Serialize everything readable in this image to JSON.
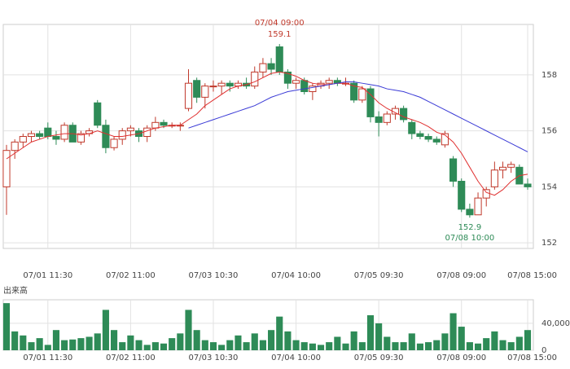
{
  "chart_data": {
    "type": "candlestick",
    "categories": [
      null,
      null,
      null,
      null,
      null,
      "07/01 11:30",
      null,
      null,
      null,
      null,
      null,
      null,
      null,
      null,
      null,
      "07/02 11:00",
      null,
      null,
      null,
      null,
      null,
      null,
      null,
      null,
      null,
      "07/03 10:30",
      null,
      null,
      null,
      null,
      null,
      null,
      null,
      null,
      null,
      "07/04 10:00",
      null,
      null,
      null,
      null,
      null,
      null,
      null,
      null,
      null,
      "07/05 09:30",
      null,
      null,
      null,
      null,
      null,
      null,
      null,
      null,
      null,
      "07/08 09:00",
      null,
      null,
      null,
      null,
      null,
      null,
      null,
      "07/08 15:00"
    ],
    "open": [
      154.0,
      155.3,
      155.6,
      155.8,
      155.9,
      156.1,
      155.8,
      155.7,
      156.2,
      155.6,
      155.9,
      157.0,
      156.2,
      155.4,
      155.7,
      156.0,
      156.0,
      155.8,
      156.1,
      156.3,
      156.2,
      156.2,
      156.8,
      157.8,
      157.2,
      157.6,
      157.6,
      157.7,
      157.6,
      157.7,
      157.6,
      158.1,
      158.4,
      159.0,
      158.1,
      157.7,
      157.8,
      157.4,
      157.6,
      157.7,
      157.8,
      157.7,
      157.7,
      157.1,
      157.5,
      156.5,
      156.3,
      156.6,
      156.8,
      156.3,
      155.9,
      155.8,
      155.7,
      155.5,
      155.0,
      154.2,
      153.2,
      153.0,
      153.6,
      154.0,
      154.6,
      154.7,
      154.7,
      154.1
    ],
    "high": [
      155.5,
      155.7,
      155.9,
      156.0,
      156.0,
      156.3,
      156.0,
      156.3,
      156.3,
      156.0,
      156.1,
      157.1,
      156.4,
      155.8,
      156.1,
      156.2,
      156.1,
      156.2,
      156.5,
      156.4,
      156.3,
      156.3,
      158.2,
      157.9,
      157.7,
      157.8,
      157.8,
      157.8,
      157.8,
      157.9,
      158.3,
      158.6,
      158.6,
      159.1,
      158.2,
      157.9,
      157.9,
      157.7,
      157.8,
      157.9,
      157.9,
      157.9,
      157.8,
      157.6,
      157.6,
      156.7,
      156.7,
      156.9,
      156.9,
      156.4,
      156.0,
      155.9,
      155.8,
      156.0,
      155.1,
      154.3,
      153.4,
      153.8,
      154.0,
      154.9,
      154.9,
      154.9,
      154.8,
      154.3
    ],
    "low": [
      153.0,
      155.0,
      155.4,
      155.6,
      155.7,
      155.7,
      155.5,
      155.6,
      155.6,
      155.5,
      155.8,
      156.1,
      155.2,
      155.3,
      155.5,
      155.8,
      155.6,
      155.6,
      156.0,
      156.1,
      156.1,
      156.0,
      156.7,
      157.0,
      156.8,
      157.4,
      157.3,
      157.4,
      157.5,
      157.5,
      157.5,
      157.9,
      158.0,
      158.0,
      157.5,
      157.5,
      157.3,
      157.1,
      157.5,
      157.5,
      157.6,
      157.6,
      157.0,
      157.0,
      156.3,
      155.8,
      156.2,
      156.4,
      156.3,
      155.7,
      155.7,
      155.6,
      155.5,
      155.4,
      154.0,
      153.1,
      152.9,
      153.0,
      153.3,
      153.9,
      154.3,
      154.5,
      154.1,
      153.9
    ],
    "close": [
      155.3,
      155.6,
      155.8,
      155.9,
      155.8,
      155.8,
      155.7,
      156.2,
      155.6,
      155.9,
      156.0,
      156.2,
      155.4,
      155.7,
      156.0,
      156.1,
      155.8,
      156.1,
      156.3,
      156.2,
      156.2,
      156.2,
      157.7,
      157.2,
      157.6,
      157.6,
      157.7,
      157.6,
      157.7,
      157.6,
      158.1,
      158.4,
      158.2,
      158.1,
      157.7,
      157.8,
      157.4,
      157.6,
      157.7,
      157.8,
      157.7,
      157.7,
      157.1,
      157.5,
      156.5,
      156.3,
      156.6,
      156.8,
      156.4,
      155.9,
      155.8,
      155.7,
      155.6,
      155.9,
      154.2,
      153.2,
      153.0,
      153.6,
      153.9,
      154.6,
      154.7,
      154.8,
      154.1,
      154.0
    ],
    "up_color": "#c0392b",
    "down_color": "#2e8b57",
    "ma": [
      {
        "color": "#e03030",
        "values": [
          155.0,
          155.2,
          155.4,
          155.6,
          155.7,
          155.8,
          155.85,
          155.9,
          155.9,
          155.85,
          155.9,
          156.0,
          155.9,
          155.8,
          155.8,
          155.85,
          155.9,
          156.0,
          156.1,
          156.15,
          156.2,
          156.2,
          156.4,
          156.6,
          156.9,
          157.1,
          157.3,
          157.5,
          157.6,
          157.65,
          157.75,
          157.9,
          158.05,
          158.1,
          158.05,
          157.95,
          157.8,
          157.7,
          157.65,
          157.65,
          157.7,
          157.7,
          157.6,
          157.55,
          157.3,
          157.0,
          156.8,
          156.65,
          156.5,
          156.4,
          156.3,
          156.15,
          155.95,
          155.85,
          155.6,
          155.2,
          154.7,
          154.2,
          153.8,
          153.7,
          153.9,
          154.2,
          154.4,
          154.45
        ]
      },
      {
        "color": "#3b3bd6",
        "values": [
          null,
          null,
          null,
          null,
          null,
          null,
          null,
          null,
          null,
          null,
          null,
          null,
          null,
          null,
          null,
          null,
          null,
          null,
          null,
          null,
          null,
          null,
          156.1,
          156.2,
          156.3,
          156.4,
          156.5,
          156.6,
          156.7,
          156.8,
          156.9,
          157.05,
          157.2,
          157.3,
          157.4,
          157.45,
          157.5,
          157.55,
          157.6,
          157.65,
          157.7,
          157.75,
          157.75,
          157.7,
          157.65,
          157.6,
          157.5,
          157.45,
          157.4,
          157.3,
          157.2,
          157.05,
          156.9,
          156.75,
          156.6,
          156.45,
          156.3,
          156.15,
          156.0,
          155.85,
          155.7,
          155.55,
          155.4,
          155.25
        ]
      }
    ],
    "ylim": [
      151.8,
      159.8
    ],
    "yticks": [
      152,
      154,
      156,
      158
    ],
    "high_note": {
      "time": "07/04 09:00",
      "value": 159.1
    },
    "low_note": {
      "value": 152.9,
      "time": "07/08 10:00"
    },
    "volume": {
      "title": "出来高",
      "color": "#2e8b57",
      "values": [
        70000,
        28000,
        22000,
        12000,
        18000,
        8000,
        30000,
        15000,
        16000,
        18000,
        20000,
        25000,
        60000,
        30000,
        12000,
        22000,
        15000,
        8000,
        12000,
        10000,
        18000,
        25000,
        60000,
        30000,
        15000,
        12000,
        8000,
        15000,
        22000,
        12000,
        25000,
        15000,
        30000,
        50000,
        28000,
        15000,
        12000,
        10000,
        8000,
        12000,
        20000,
        10000,
        28000,
        12000,
        52000,
        40000,
        20000,
        12000,
        12000,
        25000,
        10000,
        12000,
        15000,
        25000,
        55000,
        35000,
        12000,
        10000,
        18000,
        28000,
        15000,
        12000,
        20000,
        30000
      ],
      "ylim": [
        0,
        75000
      ],
      "yticks": [
        0,
        {
          "value": 40000,
          "label": "40,000"
        }
      ]
    }
  }
}
